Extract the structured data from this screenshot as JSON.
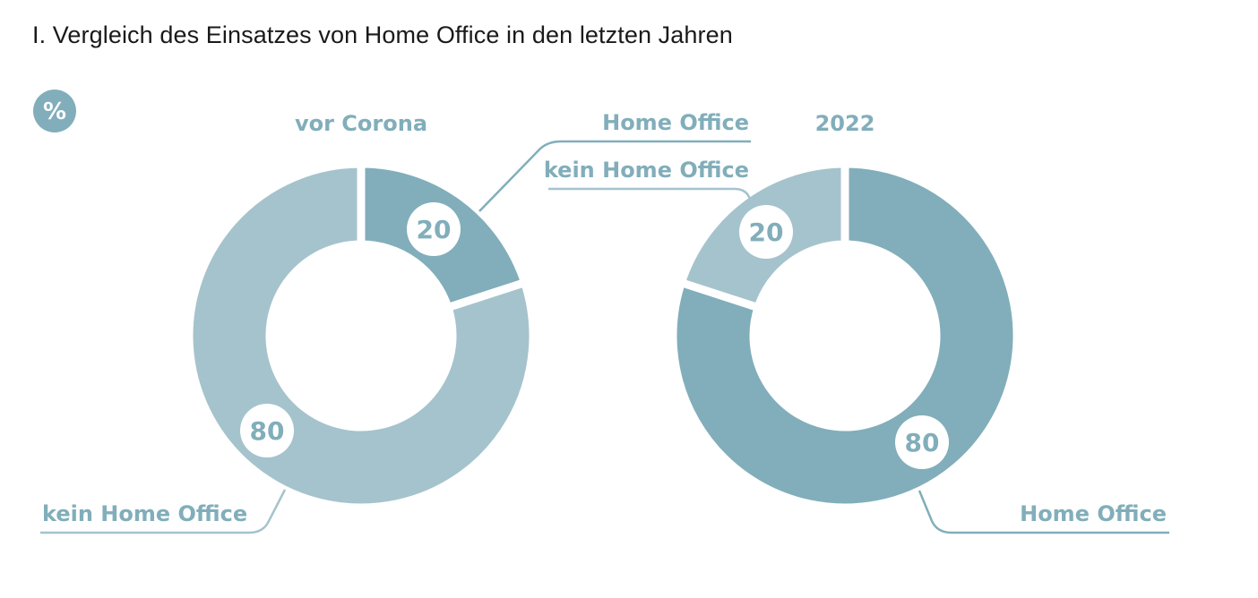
{
  "title": "I. Vergleich des Einsatzes von Home Office in den letzten Jahren",
  "unit_badge": "%",
  "colors": {
    "home_office": "#81aeba",
    "kein_home_office": "#a5c3cc",
    "text": "#81aeba",
    "title": "#1a1a1a"
  },
  "chart_data": [
    {
      "type": "pie",
      "subtype": "donut",
      "title": "vor Corona",
      "slices": [
        {
          "label": "Home Office",
          "value": 20,
          "value_label": "20"
        },
        {
          "label": "kein Home Office",
          "value": 80,
          "value_label": "80"
        }
      ],
      "unit": "%"
    },
    {
      "type": "pie",
      "subtype": "donut",
      "title": "2022",
      "slices": [
        {
          "label": "Home Office",
          "value": 80,
          "value_label": "80"
        },
        {
          "label": "kein Home Office",
          "value": 20,
          "value_label": "20"
        }
      ],
      "unit": "%"
    }
  ]
}
